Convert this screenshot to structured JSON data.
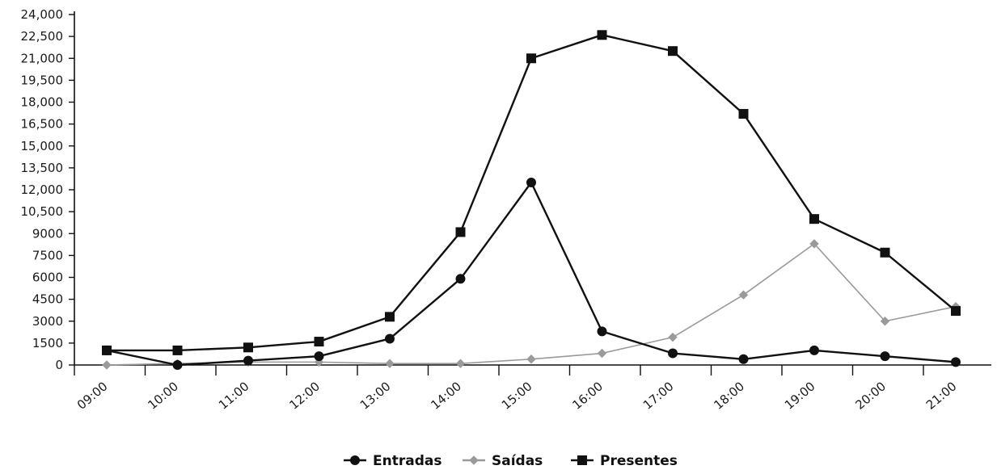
{
  "chart_data": {
    "type": "line",
    "title": "",
    "xlabel": "",
    "ylabel": "",
    "categories": [
      "09:00",
      "10:00",
      "11:00",
      "12:00",
      "13:00",
      "14:00",
      "15:00",
      "16:00",
      "17:00",
      "18:00",
      "19:00",
      "20:00",
      "21:00"
    ],
    "y_ticks": [
      "0",
      "1500",
      "3000",
      "4500",
      "6000",
      "7500",
      "9000",
      "10,500",
      "12,000",
      "13,500",
      "15,000",
      "16,500",
      "18,000",
      "19,500",
      "21,000",
      "22,500",
      "24,000"
    ],
    "ylim": [
      0,
      24000
    ],
    "grid": false,
    "legend_position": "bottom",
    "series": [
      {
        "name": "Entradas",
        "marker": "circle",
        "color": "#111111",
        "values": [
          1000,
          0,
          300,
          600,
          1800,
          5900,
          12500,
          2300,
          800,
          400,
          1000,
          600,
          200
        ]
      },
      {
        "name": "Saídas",
        "marker": "diamond",
        "color": "#9a9a9a",
        "values": [
          0,
          100,
          200,
          200,
          100,
          100,
          400,
          800,
          1900,
          4800,
          8300,
          3000,
          4000
        ]
      },
      {
        "name": "Presentes",
        "marker": "square",
        "color": "#111111",
        "values": [
          1000,
          1000,
          1200,
          1600,
          3300,
          9100,
          21000,
          22600,
          21500,
          17200,
          10000,
          7700,
          3700
        ]
      }
    ]
  }
}
